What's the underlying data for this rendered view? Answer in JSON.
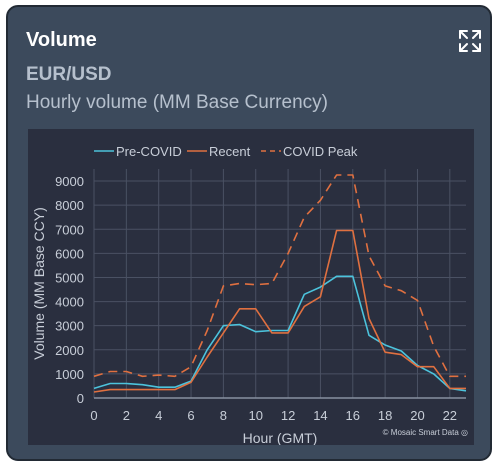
{
  "card": {
    "title": "Volume",
    "subtitle": "EUR/USD",
    "description": "Hourly volume (MM Base Currency)",
    "expand_icon": "expand-arrows-icon"
  },
  "watermark": "© Mosaic Smart Data ◎",
  "colors": {
    "card_bg": "#3c4a5c",
    "plot_bg": "#2a2f3f",
    "pre_covid": "#4cc3dc",
    "recent": "#e07040",
    "covid_peak": "#e07040"
  },
  "chart_data": {
    "type": "line",
    "title": "",
    "xlabel": "Hour (GMT)",
    "ylabel": "Volume (MM Base CCY)",
    "xlim": [
      0,
      23
    ],
    "ylim": [
      0,
      9500
    ],
    "xticks": [
      0,
      2,
      4,
      6,
      8,
      10,
      12,
      14,
      16,
      18,
      20,
      22
    ],
    "yticks": [
      0,
      1000,
      2000,
      3000,
      4000,
      5000,
      6000,
      7000,
      8000,
      9000
    ],
    "grid": true,
    "legend_position": "top",
    "x": [
      0,
      1,
      2,
      3,
      4,
      5,
      6,
      7,
      8,
      9,
      10,
      11,
      12,
      13,
      14,
      15,
      16,
      17,
      18,
      19,
      20,
      21,
      22,
      23
    ],
    "series": [
      {
        "name": "Pre-COVID",
        "style": "solid",
        "values": [
          400,
          600,
          600,
          550,
          450,
          450,
          700,
          2000,
          3000,
          3050,
          2750,
          2800,
          2800,
          4300,
          4600,
          5050,
          5050,
          2600,
          2200,
          1950,
          1350,
          1000,
          400,
          300
        ]
      },
      {
        "name": "Recent",
        "style": "solid",
        "values": [
          250,
          350,
          350,
          350,
          350,
          350,
          650,
          1700,
          2700,
          3700,
          3700,
          2700,
          2700,
          3800,
          4200,
          6950,
          6950,
          3300,
          1900,
          1800,
          1300,
          1300,
          400,
          400
        ]
      },
      {
        "name": "COVID Peak",
        "style": "dash",
        "values": [
          900,
          1100,
          1100,
          900,
          950,
          900,
          1300,
          2800,
          4650,
          4750,
          4700,
          4750,
          6000,
          7500,
          8200,
          9250,
          9250,
          5900,
          4650,
          4450,
          4050,
          2150,
          900,
          900
        ]
      }
    ]
  }
}
